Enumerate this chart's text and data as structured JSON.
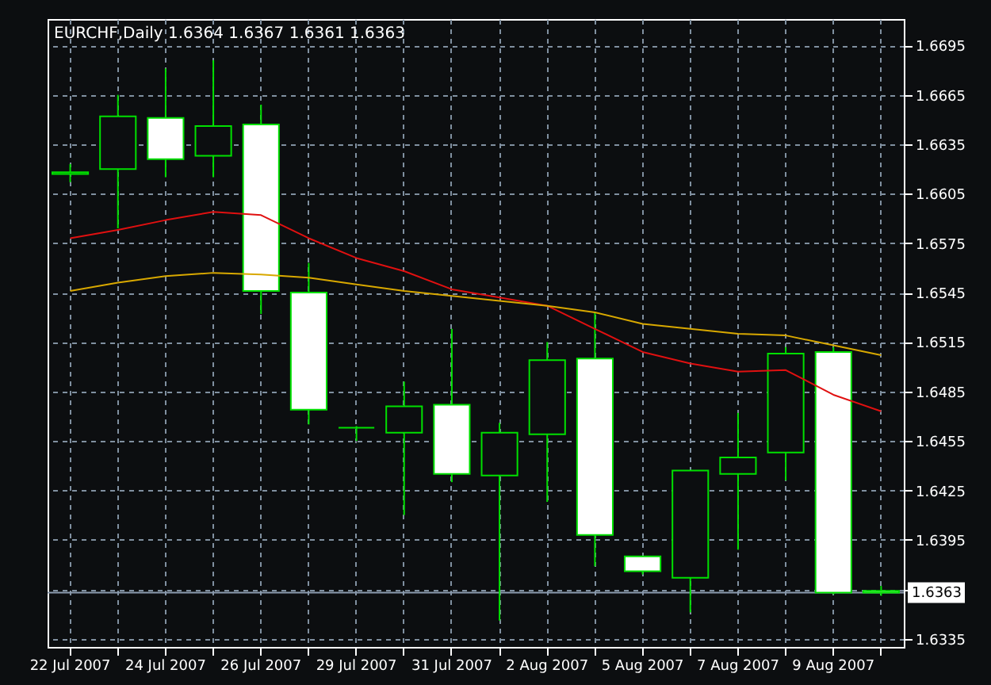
{
  "chart_data": {
    "type": "candlestick",
    "title": "EURCHF,Daily 1.6364 1.6367 1.6361 1.6363",
    "categories": [
      "22 Jul 2007",
      null,
      "24 Jul 2007",
      null,
      "26 Jul 2007",
      null,
      "29 Jul 2007",
      null,
      "31 Jul 2007",
      null,
      "2 Aug 2007",
      null,
      "5 Aug 2007",
      null,
      "7 Aug 2007",
      null,
      "9 Aug 2007",
      null
    ],
    "ohlc": [
      [
        1.6617,
        1.6623,
        1.6612,
        1.6618
      ],
      [
        1.662,
        1.6665,
        1.6584,
        1.6652
      ],
      [
        1.6651,
        1.6681,
        1.6615,
        1.6626
      ],
      [
        1.6628,
        1.6686,
        1.6615,
        1.6646
      ],
      [
        1.6647,
        1.6659,
        1.6532,
        1.6546
      ],
      [
        1.6545,
        1.6563,
        1.6465,
        1.6474
      ],
      [
        1.6463,
        1.6464,
        1.6455,
        1.6463
      ],
      [
        1.646,
        1.6491,
        1.641,
        1.6476
      ],
      [
        1.6477,
        1.6523,
        1.643,
        1.6435
      ],
      [
        1.6434,
        1.6466,
        1.6346,
        1.646
      ],
      [
        1.6459,
        1.6515,
        1.6418,
        1.6504
      ],
      [
        1.6505,
        1.6533,
        1.6379,
        1.6398
      ],
      [
        1.6385,
        1.6385,
        1.6374,
        1.6376
      ],
      [
        1.6372,
        1.6437,
        1.6351,
        1.6437
      ],
      [
        1.6435,
        1.6472,
        1.6389,
        1.6445
      ],
      [
        1.6448,
        1.6512,
        1.6431,
        1.6508
      ],
      [
        1.6509,
        1.6512,
        1.6362,
        1.6363
      ],
      [
        1.6364,
        1.6367,
        1.6361,
        1.6363
      ]
    ],
    "color": "#00e000",
    "colors": [
      "#0c0e10",
      "#0c0e10",
      "#ffffff",
      "#0c0e10",
      "#ffffff",
      "#ffffff",
      "#00e000",
      "#0c0e10",
      "#ffffff",
      "#0c0e10",
      "#0c0e10",
      "#ffffff",
      "#ffffff",
      "#0c0e10",
      "#0c0e10",
      "#0c0e10",
      "#ffffff",
      "#ffffff"
    ],
    "series": [
      {
        "type": "line",
        "color": "#e01010",
        "values": [
          1.6578,
          1.6583,
          1.6589,
          1.6594,
          1.6592,
          1.6578,
          1.6566,
          1.6558,
          1.6547,
          1.6542,
          1.6537,
          1.6523,
          1.6509,
          1.6502,
          1.6497,
          1.6498,
          1.6483,
          1.6473
        ]
      },
      {
        "type": "line",
        "color": "#d8a800",
        "values": [
          1.6546,
          1.6551,
          1.6555,
          1.6557,
          1.6556,
          1.6554,
          1.655,
          1.6546,
          1.6543,
          1.654,
          1.6537,
          1.6533,
          1.6526,
          1.6523,
          1.652,
          1.6519,
          1.6513,
          1.6507
        ]
      }
    ],
    "ylim": [
      1.633,
      1.6711
    ],
    "yticks": [
      1.6695,
      1.6665,
      1.6635,
      1.6605,
      1.6575,
      1.6545,
      1.6515,
      1.6485,
      1.6455,
      1.6425,
      1.6395,
      {
        "value": 1.6365,
        "label": null
      },
      1.6335
    ],
    "ref_lines": [
      {
        "axis": "y",
        "value": 1.6363,
        "label": "1.6363",
        "color": "#8c9cb0"
      }
    ],
    "grid": true
  }
}
